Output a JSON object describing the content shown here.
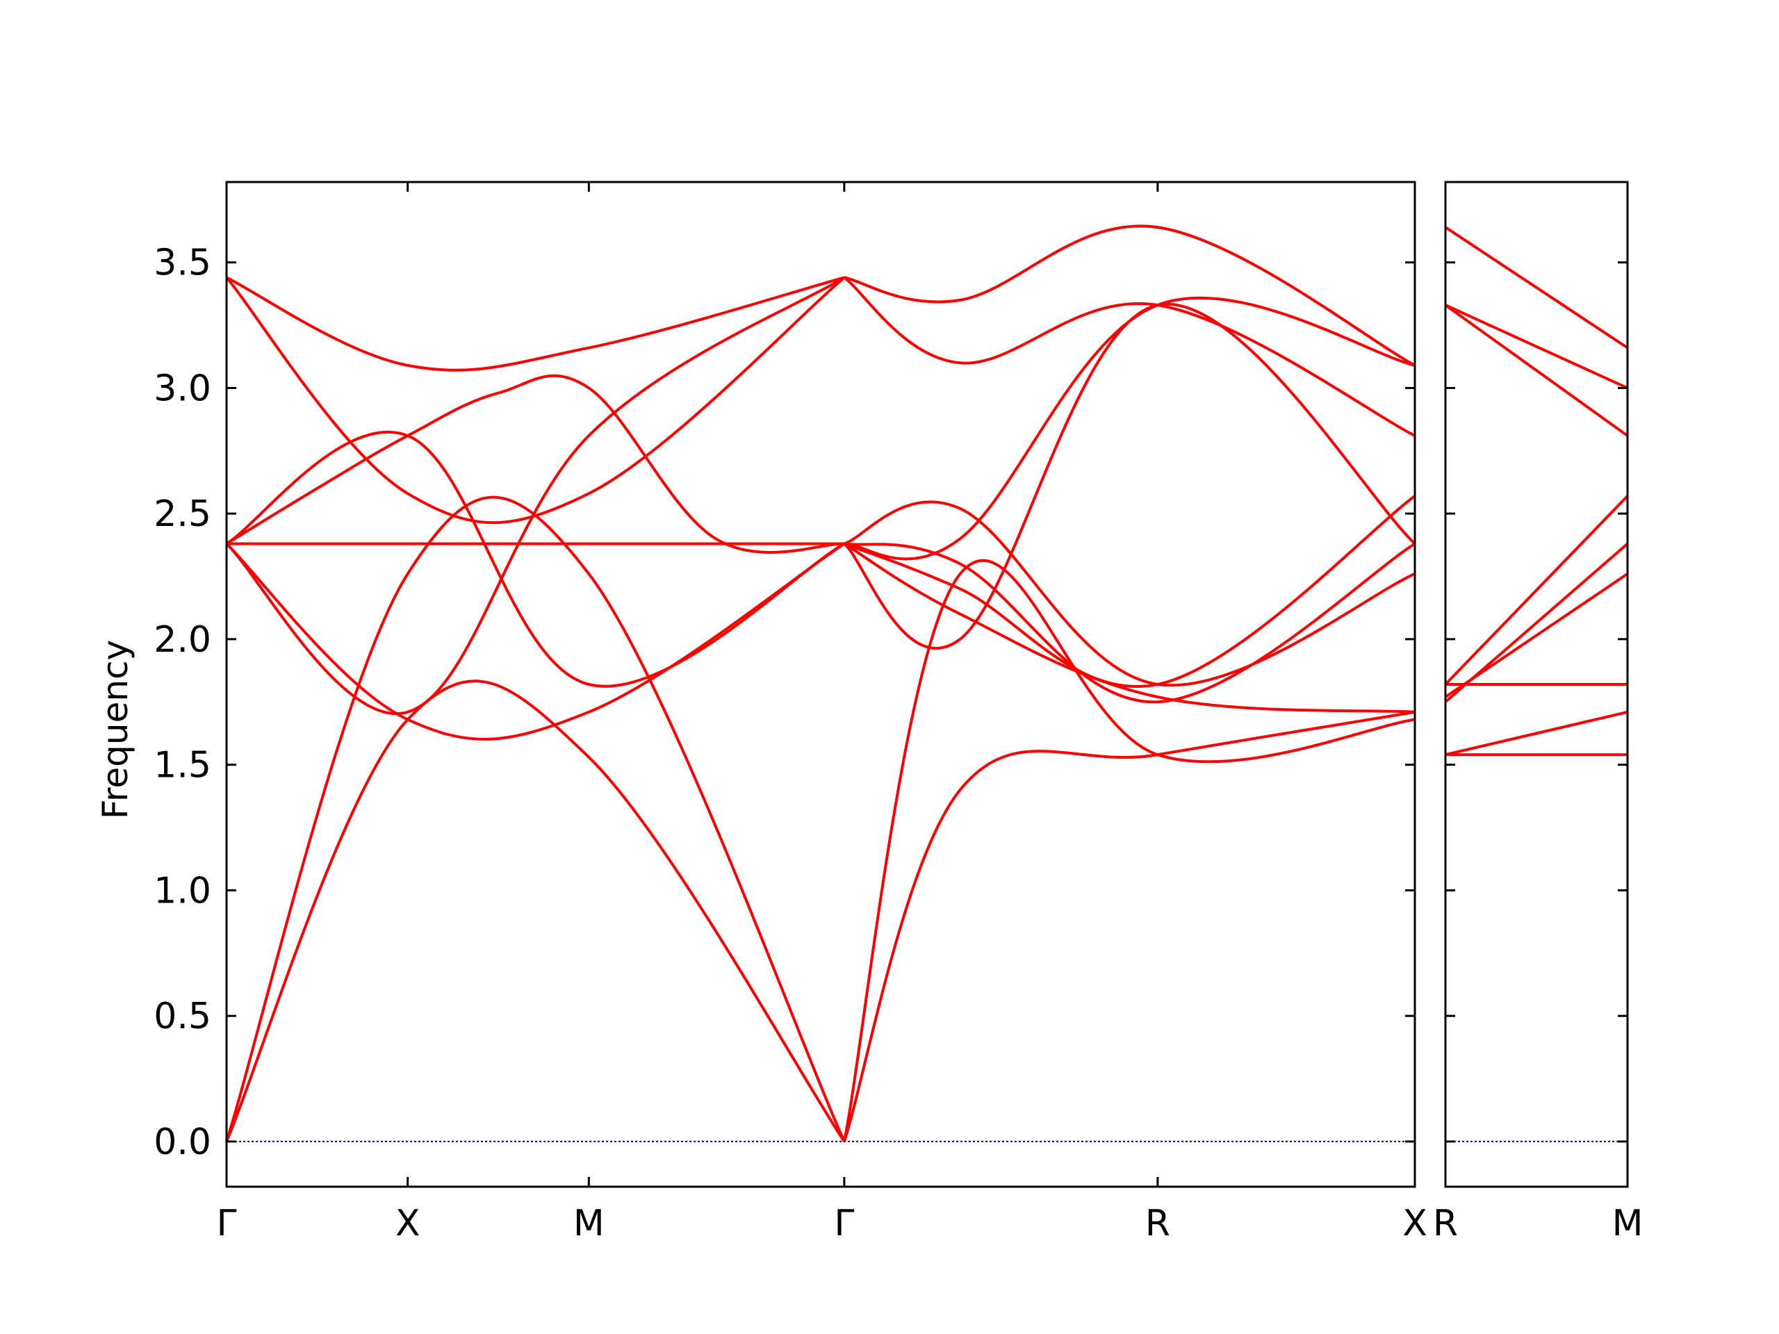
{
  "chart_data": {
    "type": "line",
    "title": "",
    "ylabel": "Frequency",
    "ylim": [
      -0.18,
      3.82
    ],
    "yticks": [
      "0.0",
      "0.5",
      "1.0",
      "1.5",
      "2.0",
      "2.5",
      "3.0",
      "3.5"
    ],
    "ytick_values": [
      0.0,
      0.5,
      1.0,
      1.5,
      2.0,
      2.5,
      3.0,
      3.5
    ],
    "grid": false,
    "line_color": "#ff0000",
    "zero_line_color": "#00008b",
    "panels": [
      {
        "name": "main",
        "xlim": [
          0,
          6.56
        ],
        "kpoints": [
          {
            "label": "Γ",
            "x": 0
          },
          {
            "label": "X",
            "x": 1
          },
          {
            "label": "M",
            "x": 2
          },
          {
            "label": "Γ",
            "x": 3.41
          },
          {
            "label": "R",
            "x": 5.14
          },
          {
            "label": "X",
            "x": 6.56
          }
        ],
        "bands": [
          {
            "x": [
              0,
              1,
              2,
              3.41
            ],
            "y": [
              0.0,
              1.68,
              1.53,
              0.0
            ]
          },
          {
            "x": [
              0,
              1,
              2,
              3.41
            ],
            "y": [
              0.0,
              2.26,
              2.26,
              0.0
            ]
          },
          {
            "x": [
              0,
              1,
              2,
              3.41
            ],
            "y": [
              3.44,
              2.58,
              2.58,
              3.44
            ]
          },
          {
            "x": [
              0,
              1,
              2,
              3.41
            ],
            "y": [
              3.44,
              3.09,
              3.16,
              3.44
            ]
          },
          {
            "x": [
              0,
              0.5,
              1,
              1.5,
              2,
              2.7,
              3.41
            ],
            "y": [
              2.38,
              2.38,
              2.38,
              2.38,
              2.38,
              2.38,
              2.38
            ]
          },
          {
            "x": [
              0,
              0.5,
              1,
              1.5,
              2,
              2.7,
              3.41
            ],
            "y": [
              2.38,
              2.6,
              2.81,
              2.98,
              3.0,
              2.4,
              2.38
            ]
          },
          {
            "x": [
              0,
              1,
              2,
              3.41
            ],
            "y": [
              2.38,
              1.71,
              2.81,
              3.44
            ]
          },
          {
            "x": [
              0,
              1,
              2,
              3.41
            ],
            "y": [
              2.38,
              2.81,
              1.82,
              2.38
            ]
          },
          {
            "x": [
              0,
              1,
              2,
              3.41
            ],
            "y": [
              2.38,
              1.68,
              1.71,
              2.38
            ]
          },
          {
            "x": [
              3.41,
              4.05,
              5.14,
              6.56
            ],
            "y": [
              0.0,
              2.26,
              1.54,
              1.68
            ]
          },
          {
            "x": [
              3.41,
              4.05,
              5.14,
              6.56
            ],
            "y": [
              0.0,
              1.4,
              1.54,
              1.71
            ]
          },
          {
            "x": [
              3.41,
              4.05,
              5.14,
              6.56
            ],
            "y": [
              3.44,
              3.35,
              3.64,
              3.09
            ]
          },
          {
            "x": [
              3.41,
              4.05,
              5.14,
              6.56
            ],
            "y": [
              3.44,
              3.1,
              3.33,
              2.81
            ]
          },
          {
            "x": [
              3.41,
              4.05,
              5.14,
              6.56
            ],
            "y": [
              2.38,
              2.4,
              3.33,
              3.09
            ]
          },
          {
            "x": [
              3.41,
              4.05,
              5.14,
              6.56
            ],
            "y": [
              2.38,
              2.52,
              1.82,
              2.26
            ]
          },
          {
            "x": [
              3.41,
              4.05,
              5.14,
              6.56
            ],
            "y": [
              2.38,
              2.3,
              1.75,
              2.38
            ]
          },
          {
            "x": [
              3.41,
              4.05,
              5.14,
              6.56
            ],
            "y": [
              2.38,
              2.2,
              1.82,
              2.57
            ]
          },
          {
            "x": [
              3.41,
              4.05,
              5.14,
              6.56
            ],
            "y": [
              2.38,
              2.1,
              1.77,
              1.71
            ]
          },
          {
            "x": [
              3.41,
              4.05,
              5.14,
              6.56
            ],
            "y": [
              2.38,
              2.0,
              3.33,
              2.38
            ]
          }
        ]
      },
      {
        "name": "inset",
        "xlim": [
          0,
          1
        ],
        "kpoints": [
          {
            "label": "R",
            "x": 0
          },
          {
            "label": "M",
            "x": 1
          }
        ],
        "bands": [
          {
            "x": [
              0,
              1
            ],
            "y": [
              3.64,
              3.16
            ]
          },
          {
            "x": [
              0,
              1
            ],
            "y": [
              3.33,
              3.0
            ]
          },
          {
            "x": [
              0,
              1
            ],
            "y": [
              3.33,
              2.81
            ]
          },
          {
            "x": [
              0,
              1
            ],
            "y": [
              1.82,
              2.57
            ]
          },
          {
            "x": [
              0,
              1
            ],
            "y": [
              1.75,
              2.38
            ]
          },
          {
            "x": [
              0,
              1
            ],
            "y": [
              1.77,
              2.26
            ]
          },
          {
            "x": [
              0,
              1
            ],
            "y": [
              1.82,
              1.82
            ]
          },
          {
            "x": [
              0,
              1
            ],
            "y": [
              1.54,
              1.71
            ]
          },
          {
            "x": [
              0,
              1
            ],
            "y": [
              1.54,
              1.54
            ]
          }
        ]
      }
    ]
  }
}
